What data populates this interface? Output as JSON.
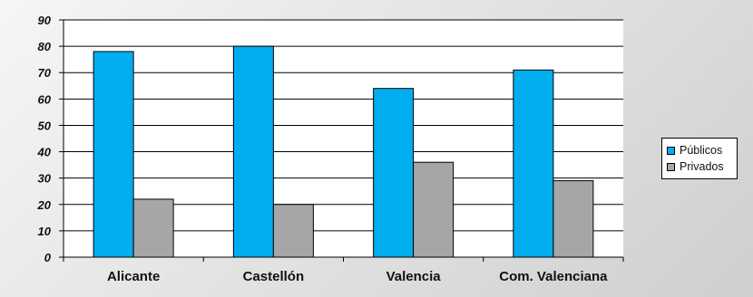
{
  "chart_data": {
    "type": "bar",
    "categories": [
      "Alicante",
      "Castellón",
      "Valencia",
      "Com. Valenciana"
    ],
    "series": [
      {
        "name": "Públicos",
        "values": [
          78,
          80,
          64,
          71
        ],
        "color": "#00aeef"
      },
      {
        "name": "Privados",
        "values": [
          22,
          20,
          36,
          29
        ],
        "color": "#a6a6a6"
      }
    ],
    "ylim": [
      0,
      90
    ],
    "yticks": [
      "0",
      "10",
      "20",
      "30",
      "40",
      "50",
      "60",
      "70",
      "80",
      "90"
    ],
    "grid": true,
    "legend_position": "right"
  },
  "colors": {
    "plot_background": "#ffffff",
    "gridline": "#000000"
  }
}
